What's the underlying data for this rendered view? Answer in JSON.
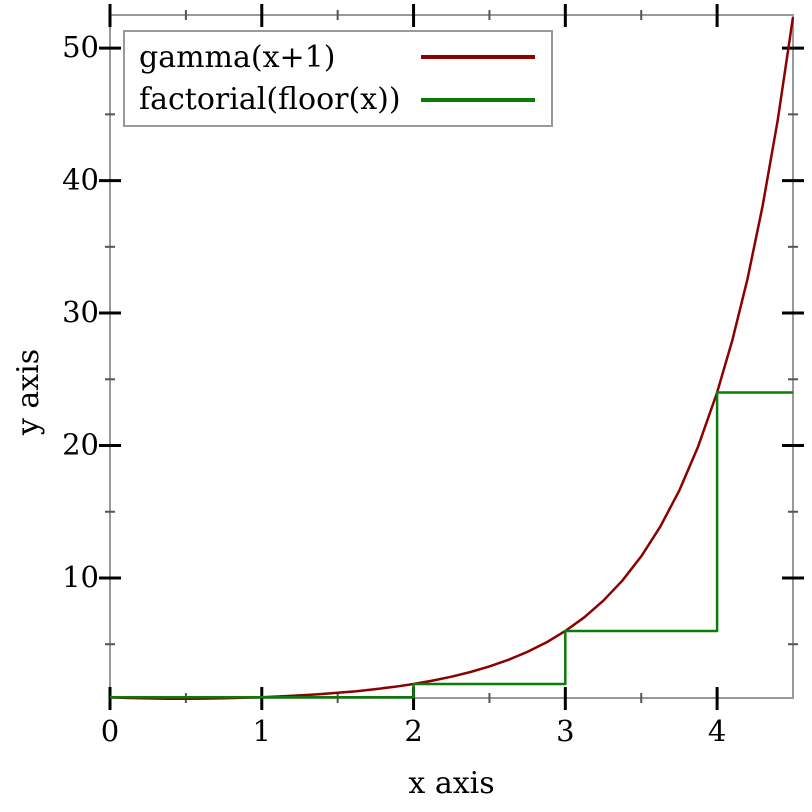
{
  "figure": {
    "background": "#ffffff"
  },
  "chart_data": {
    "type": "line",
    "title": "",
    "xlabel": "x axis",
    "ylabel": "y axis",
    "xlim": [
      0,
      4.5
    ],
    "ylim": [
      0.94,
      52.5
    ],
    "grid": false,
    "x_major_ticks": [
      0,
      1,
      2,
      3,
      4
    ],
    "x_minor_ticks": [
      0.5,
      1.5,
      2.5,
      3.5
    ],
    "y_major_ticks": [
      10,
      20,
      30,
      40,
      50
    ],
    "y_minor_ticks": [
      5,
      15,
      25,
      35,
      45
    ],
    "legend": {
      "position": "top-left"
    },
    "style": {
      "axis_color": "#999999",
      "major_tick_color": "#000000",
      "minor_tick_color": "#555555",
      "legend_border_color": "#999999",
      "text_color": "#000000"
    },
    "series": [
      {
        "name": "gamma(x+1)",
        "kind": "smooth-curve",
        "color": "#8b0000",
        "points": [
          [
            0,
            1.0
          ],
          [
            0.125,
            0.9417
          ],
          [
            0.25,
            0.9064
          ],
          [
            0.375,
            0.8889
          ],
          [
            0.5,
            0.8862
          ],
          [
            0.625,
            0.8966
          ],
          [
            0.75,
            0.9191
          ],
          [
            0.875,
            0.9534
          ],
          [
            1.0,
            1.0
          ],
          [
            1.125,
            1.0594
          ],
          [
            1.25,
            1.133
          ],
          [
            1.375,
            1.2222
          ],
          [
            1.5,
            1.3293
          ],
          [
            1.625,
            1.457
          ],
          [
            1.75,
            1.6084
          ],
          [
            1.875,
            1.7876
          ],
          [
            2.0,
            2.0
          ],
          [
            2.125,
            2.2512
          ],
          [
            2.25,
            2.5493
          ],
          [
            2.375,
            2.9027
          ],
          [
            2.5,
            3.3234
          ],
          [
            2.625,
            3.8246
          ],
          [
            2.75,
            4.423
          ],
          [
            2.875,
            5.1393
          ],
          [
            3.0,
            6.0
          ],
          [
            3.125,
            7.035
          ],
          [
            3.25,
            8.2853
          ],
          [
            3.375,
            9.7966
          ],
          [
            3.5,
            11.6318
          ],
          [
            3.625,
            13.8642
          ],
          [
            3.75,
            16.5862
          ],
          [
            3.875,
            19.9148
          ],
          [
            4.0,
            24.0
          ],
          [
            4.1,
            27.932
          ],
          [
            4.2,
            32.578
          ],
          [
            4.3,
            38.078
          ],
          [
            4.4,
            44.599
          ],
          [
            4.5,
            52.343
          ]
        ]
      },
      {
        "name": "factorial(floor(x))",
        "kind": "step",
        "color": "#0a7c0a",
        "points": [
          [
            0,
            1
          ],
          [
            2,
            1
          ],
          [
            2,
            2
          ],
          [
            3,
            2
          ],
          [
            3,
            6
          ],
          [
            4,
            6
          ],
          [
            4,
            24
          ],
          [
            4.5,
            24
          ]
        ]
      }
    ]
  }
}
